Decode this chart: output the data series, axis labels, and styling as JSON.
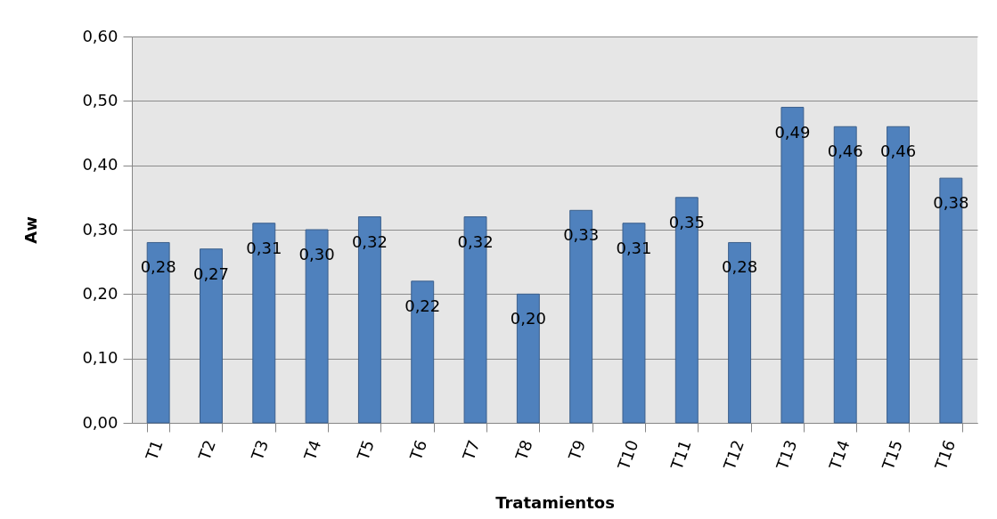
{
  "chart_data": {
    "type": "bar",
    "xlabel": "Tratamientos",
    "ylabel": "Aw",
    "categories": [
      "T1",
      "T2",
      "T3",
      "T4",
      "T5",
      "T6",
      "T7",
      "T8",
      "T9",
      "T10",
      "T11",
      "T12",
      "T13",
      "T14",
      "T15",
      "T16"
    ],
    "values": [
      0.28,
      0.27,
      0.31,
      0.3,
      0.32,
      0.22,
      0.32,
      0.2,
      0.33,
      0.31,
      0.35,
      0.28,
      0.49,
      0.46,
      0.46,
      0.38
    ],
    "value_labels": [
      "0,28",
      "0,27",
      "0,31",
      "0,30",
      "0,32",
      "0,22",
      "0,32",
      "0,20",
      "0,33",
      "0,31",
      "0,35",
      "0,28",
      "0,49",
      "0,46",
      "0,46",
      "0,38"
    ],
    "color": "#4f81bd",
    "ylim": [
      0,
      0.6
    ],
    "yticks": [
      {
        "value": 0,
        "label": "0,00"
      },
      {
        "value": 0.1,
        "label": "0,10"
      },
      {
        "value": 0.2,
        "label": "0,20"
      },
      {
        "value": 0.3,
        "label": "0,30"
      },
      {
        "value": 0.4,
        "label": "0,40"
      },
      {
        "value": 0.5,
        "label": "0,50"
      },
      {
        "value": 0.6,
        "label": "0,60"
      }
    ],
    "grid": "y"
  }
}
